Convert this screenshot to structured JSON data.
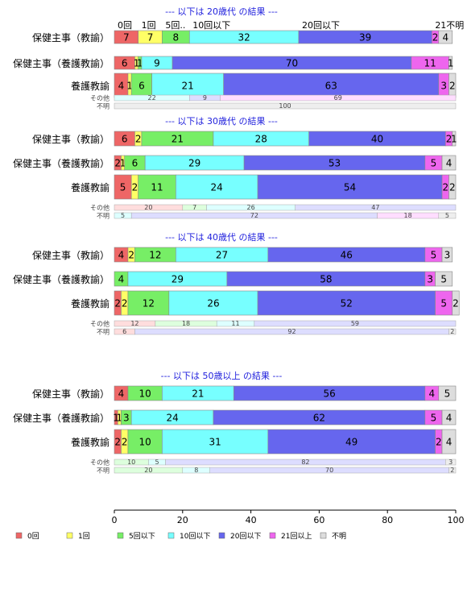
{
  "chart_data": {
    "type": "bar",
    "stacked": true,
    "orientation": "horizontal",
    "percent": true,
    "xlim": [
      0,
      100
    ],
    "xticks": [
      0,
      20,
      40,
      60,
      80,
      100
    ],
    "grid": false,
    "legend_position": "bottom",
    "top_category_labels": [
      {
        "text": "0回",
        "at": 0
      },
      {
        "text": "1回",
        "at": 7
      },
      {
        "text": "5回..",
        "at": 14
      },
      {
        "text": "10回以下",
        "at": 22
      },
      {
        "text": "20回以下",
        "at": 54
      },
      {
        "text": "21不明",
        "at": 93
      }
    ],
    "categories": [
      "0回",
      "1回",
      "5回以下",
      "10回以下",
      "20回以下",
      "21回以上",
      "不明"
    ],
    "colors": [
      "#ee6666",
      "#ffff66",
      "#77ee66",
      "#77ffff",
      "#6666ee",
      "#ee66ee",
      "#dddddd"
    ],
    "small_colors": [
      "#ffdddd",
      "#ffffdd",
      "#ddffdd",
      "#ddffff",
      "#ddddff",
      "#ffddff",
      "#eeeeee"
    ],
    "groups": [
      {
        "title": "--- 以下は 20歳代 の結果 ---",
        "rows": [
          {
            "label": "保健主事（教諭）",
            "values": [
              7,
              7,
              8,
              32,
              39,
              2,
              4
            ],
            "labels": [
              "7",
              "7",
              "8",
              "32",
              "39",
              "2",
              "4"
            ]
          },
          {
            "label": "保健主事（養護教諭）",
            "values": [
              6,
              1,
              1,
              9,
              70,
              11,
              1
            ],
            "labels": [
              "6",
              "1",
              "1",
              "9",
              "70",
              "11",
              "1"
            ]
          },
          {
            "label": "養護教諭",
            "values": [
              4,
              1,
              6,
              21,
              63,
              3,
              2
            ],
            "labels": [
              "4",
              "1",
              "6",
              "21",
              "63",
              "3",
              "2"
            ]
          }
        ],
        "small_rows": [
          {
            "label": "その他",
            "values": [
              0,
              0,
              0,
              22,
              9,
              69,
              0
            ],
            "labels": [
              "",
              "",
              "",
              "22",
              "9",
              "69",
              ""
            ]
          },
          {
            "label": "不明",
            "values": [
              0,
              0,
              0,
              0,
              0,
              0,
              100
            ],
            "labels": [
              "",
              "",
              "",
              "",
              "",
              "",
              "100"
            ]
          }
        ]
      },
      {
        "title": "--- 以下は 30歳代 の結果 ---",
        "rows": [
          {
            "label": "保健主事（教諭）",
            "values": [
              6,
              2,
              21,
              28,
              40,
              2,
              1
            ],
            "labels": [
              "6",
              "2",
              "21",
              "28",
              "40",
              "2",
              "1"
            ]
          },
          {
            "label": "保健主事（養護教諭）",
            "values": [
              2,
              1,
              6,
              29,
              53,
              5,
              4
            ],
            "labels": [
              "2",
              "1",
              "6",
              "29",
              "53",
              "5",
              "4"
            ]
          },
          {
            "label": "養護教諭",
            "values": [
              5,
              2,
              11,
              24,
              54,
              2,
              2
            ],
            "labels": [
              "5",
              "2",
              "11",
              "24",
              "54",
              "2",
              "2"
            ]
          }
        ],
        "small_rows": [
          {
            "label": "その他",
            "values": [
              20,
              0,
              7,
              26,
              47,
              0,
              0
            ],
            "labels": [
              "20",
              "",
              "7",
              "26",
              "47",
              "",
              ""
            ]
          },
          {
            "label": "不明",
            "values": [
              0,
              0,
              0,
              5,
              72,
              18,
              5
            ],
            "labels": [
              "",
              "",
              "",
              "5",
              "72",
              "18",
              "5"
            ]
          }
        ]
      },
      {
        "title": "--- 以下は 40歳代 の結果 ---",
        "rows": [
          {
            "label": "保健主事（教諭）",
            "values": [
              4,
              2,
              12,
              27,
              46,
              5,
              3
            ],
            "labels": [
              "4",
              "2",
              "12",
              "27",
              "46",
              "5",
              "3"
            ]
          },
          {
            "label": "保健主事（養護教諭）",
            "values": [
              0,
              0,
              4,
              29,
              58,
              3,
              5
            ],
            "labels": [
              "",
              "",
              "4",
              "29",
              "58",
              "3",
              "5"
            ]
          },
          {
            "label": "養護教諭",
            "values": [
              2,
              2,
              12,
              26,
              52,
              5,
              2
            ],
            "labels": [
              "2",
              "2",
              "12",
              "26",
              "52",
              "5",
              "2"
            ]
          }
        ],
        "small_rows": [
          {
            "label": "その他",
            "values": [
              12,
              0,
              18,
              11,
              59,
              0,
              0
            ],
            "labels": [
              "12",
              "",
              "18",
              "11",
              "59",
              "",
              ""
            ]
          },
          {
            "label": "不明",
            "values": [
              6,
              0,
              0,
              0,
              92,
              0,
              2
            ],
            "labels": [
              "6",
              "",
              "",
              "",
              "92",
              "",
              "2"
            ]
          }
        ]
      },
      {
        "title": "--- 以下は 50歳以上 の結果 ---",
        "rows": [
          {
            "label": "保健主事（教諭）",
            "values": [
              4,
              0,
              10,
              21,
              56,
              4,
              5
            ],
            "labels": [
              "4",
              "",
              "10",
              "21",
              "56",
              "4",
              "5"
            ]
          },
          {
            "label": "保健主事（養護教諭）",
            "values": [
              1,
              1,
              3,
              24,
              62,
              5,
              4
            ],
            "labels": [
              "1",
              "1",
              "3",
              "24",
              "62",
              "5",
              "4"
            ]
          },
          {
            "label": "養護教諭",
            "values": [
              2,
              2,
              10,
              31,
              49,
              2,
              4
            ],
            "labels": [
              "2",
              "2",
              "10",
              "31",
              "49",
              "2",
              "4"
            ]
          }
        ],
        "small_rows": [
          {
            "label": "その他",
            "values": [
              0,
              0,
              10,
              5,
              82,
              0,
              3
            ],
            "labels": [
              "",
              "",
              "10",
              "5",
              "82",
              "",
              "3"
            ]
          },
          {
            "label": "不明",
            "values": [
              0,
              0,
              20,
              8,
              70,
              0,
              2
            ],
            "labels": [
              "",
              "",
              "20",
              "8",
              "70",
              "",
              "2"
            ]
          }
        ]
      }
    ],
    "legend": [
      "0回",
      "1回",
      "5回以下",
      "10回以下",
      "20回以下",
      "21回以上",
      "不明"
    ]
  }
}
